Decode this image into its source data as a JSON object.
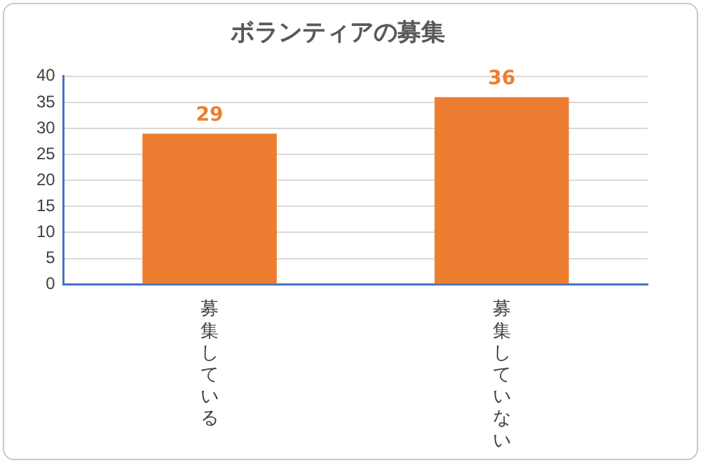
{
  "chart_data": {
    "type": "bar",
    "title": "ボランティアの募集",
    "categories": [
      "募集している",
      "募集していない"
    ],
    "values": [
      29,
      36
    ],
    "color": "#ed7d31",
    "ylim": [
      0,
      40
    ],
    "yticks": [
      0,
      5,
      10,
      15,
      20,
      25,
      30,
      35,
      40
    ],
    "grid": "y",
    "data_labels": true
  }
}
